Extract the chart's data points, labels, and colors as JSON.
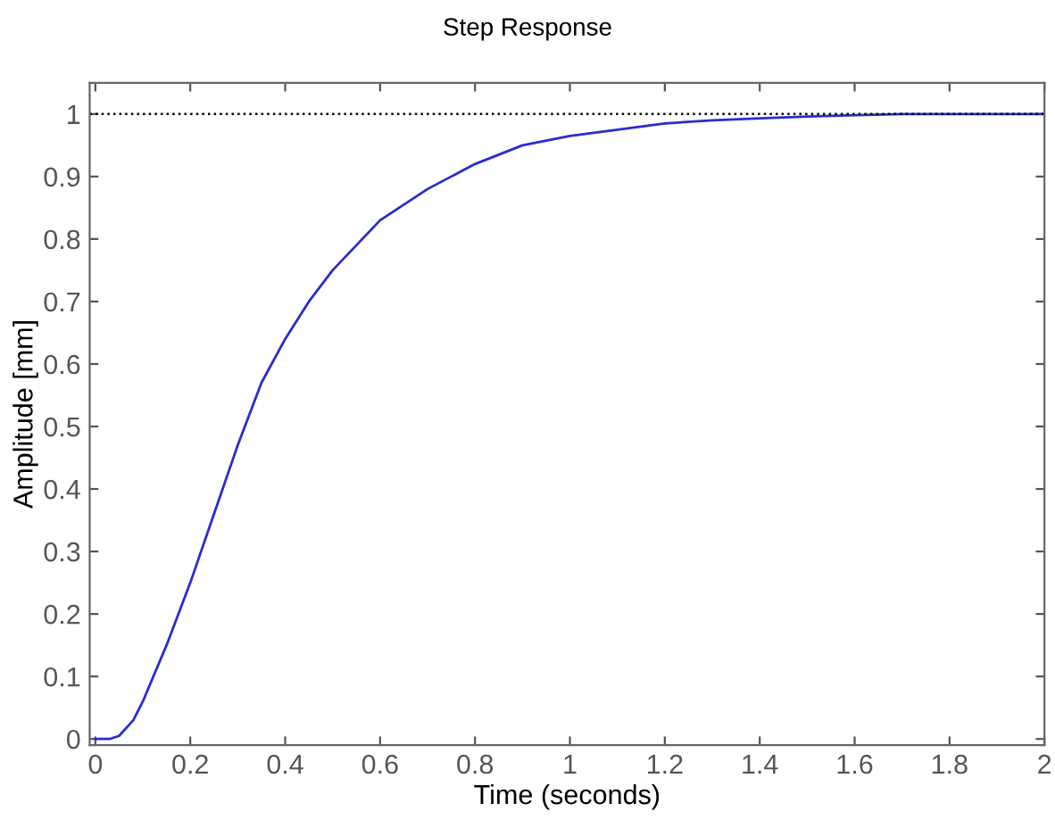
{
  "chart_data": {
    "type": "line",
    "title": "Step Response",
    "xlabel": "Time (seconds)",
    "ylabel": "Amplitude [mm]",
    "x": [
      0,
      0.03,
      0.05,
      0.08,
      0.1,
      0.15,
      0.2,
      0.25,
      0.3,
      0.35,
      0.4,
      0.45,
      0.5,
      0.55,
      0.6,
      0.7,
      0.8,
      0.9,
      1.0,
      1.1,
      1.2,
      1.3,
      1.4,
      1.5,
      1.6,
      1.7,
      1.8,
      2.0
    ],
    "series": [
      {
        "color": "#2b2bd0",
        "values": [
          0,
          0,
          0.005,
          0.03,
          0.06,
          0.15,
          0.25,
          0.36,
          0.47,
          0.57,
          0.64,
          0.7,
          0.75,
          0.79,
          0.83,
          0.88,
          0.92,
          0.95,
          0.965,
          0.975,
          0.985,
          0.99,
          0.993,
          0.996,
          0.998,
          1.0,
          1.0,
          1.0
        ]
      }
    ],
    "ref_lines": [
      {
        "axis": "y",
        "value": 1,
        "color": "#000000",
        "line_style": "dotted"
      }
    ],
    "xlim": [
      -0.012,
      2.0
    ],
    "ylim": [
      -0.01,
      1.05
    ],
    "xticks": [
      0,
      0.2,
      0.4,
      0.6,
      0.8,
      1,
      1.2,
      1.4,
      1.6,
      1.8,
      2
    ],
    "yticks": [
      0,
      0.1,
      0.2,
      0.3,
      0.4,
      0.5,
      0.6,
      0.7,
      0.8,
      0.9,
      1
    ],
    "grid": false,
    "marker": "none",
    "line_style": "solid"
  }
}
